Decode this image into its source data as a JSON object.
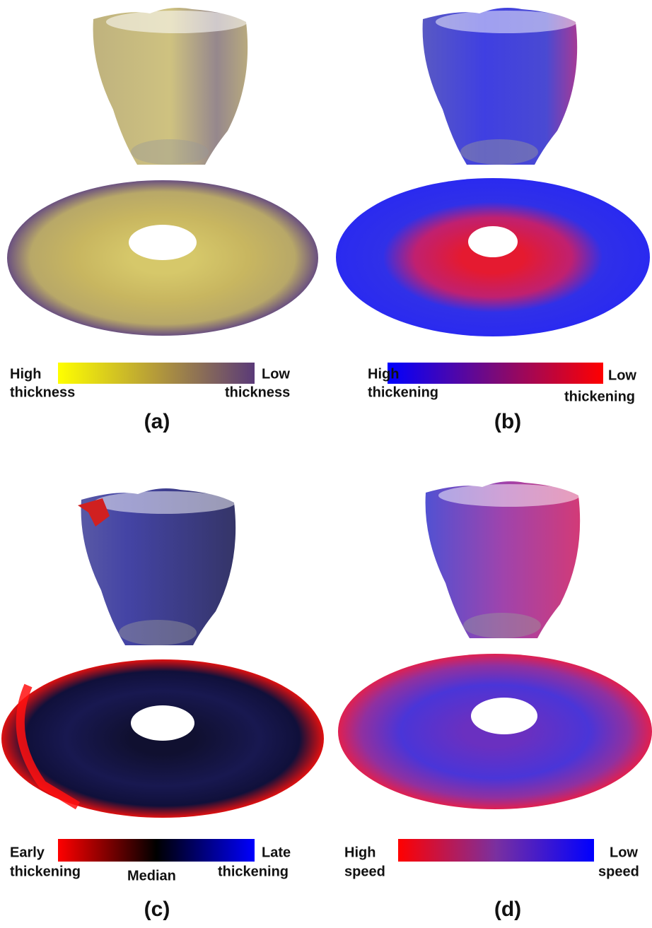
{
  "panels": [
    {
      "label": "(a)",
      "left": [
        "High",
        "thickness"
      ],
      "right": [
        "Low",
        "thickness"
      ]
    },
    {
      "label": "(b)",
      "left": [
        "High",
        "thickening"
      ],
      "right": [
        "Low",
        "thickening"
      ]
    },
    {
      "label": "(c)",
      "left": [
        "Early",
        "thickening"
      ],
      "middle": "Median",
      "right": [
        "Late",
        "thickening"
      ]
    },
    {
      "label": "(d)",
      "left": [
        "High",
        "speed"
      ],
      "right": [
        "Low",
        "speed"
      ]
    }
  ]
}
